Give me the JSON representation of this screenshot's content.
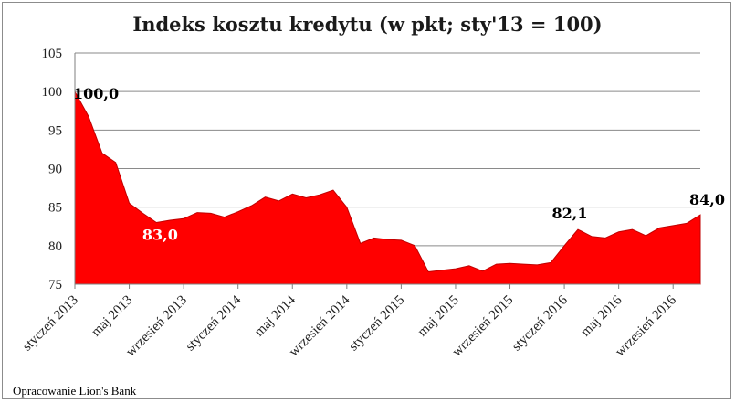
{
  "chart_data": {
    "type": "area",
    "title": "Indeks kosztu kredytu (w pkt; sty'13 = 100)",
    "source": "Opracowanie Lion's Bank",
    "ylim": [
      75,
      105
    ],
    "yticks": [
      75,
      80,
      85,
      90,
      95,
      100,
      105
    ],
    "grid": true,
    "color": "#ff0000",
    "x_tick_labels": [
      "styczeń 2013",
      "maj 2013",
      "wrzesień 2013",
      "styczeń 2014",
      "maj 2014",
      "wrzesień 2014",
      "styczeń 2015",
      "maj 2015",
      "wrzesień 2015",
      "styczeń 2016",
      "maj 2016",
      "wrzesień 2016"
    ],
    "x": [
      "sty 2013",
      "lut 2013",
      "mar 2013",
      "kwi 2013",
      "maj 2013",
      "cze 2013",
      "lip 2013",
      "sie 2013",
      "wrz 2013",
      "paź 2013",
      "lis 2013",
      "gru 2013",
      "sty 2014",
      "lut 2014",
      "mar 2014",
      "kwi 2014",
      "maj 2014",
      "cze 2014",
      "lip 2014",
      "sie 2014",
      "wrz 2014",
      "paź 2014",
      "lis 2014",
      "gru 2014",
      "sty 2015",
      "lut 2015",
      "mar 2015",
      "kwi 2015",
      "maj 2015",
      "cze 2015",
      "lip 2015",
      "sie 2015",
      "wrz 2015",
      "paź 2015",
      "lis 2015",
      "gru 2015",
      "sty 2016",
      "lut 2016",
      "mar 2016",
      "kwi 2016",
      "maj 2016",
      "cze 2016",
      "lip 2016",
      "sie 2016",
      "wrz 2016",
      "paź 2016",
      "lis 2016"
    ],
    "series": [
      {
        "values": [
          100.0,
          96.8,
          92.0,
          90.8,
          85.5,
          84.2,
          83.0,
          83.3,
          83.5,
          84.3,
          84.2,
          83.7,
          84.4,
          85.2,
          86.3,
          85.8,
          86.7,
          86.2,
          86.6,
          87.2,
          85.0,
          80.3,
          81.0,
          80.8,
          80.7,
          80.0,
          76.6,
          76.8,
          77.0,
          77.4,
          76.7,
          77.6,
          77.7,
          77.6,
          77.5,
          77.8,
          80.0,
          82.1,
          81.2,
          81.0,
          81.8,
          82.1,
          81.3,
          82.3,
          82.6,
          82.9,
          84.0
        ]
      }
    ],
    "data_labels": [
      {
        "text": "100,0",
        "x": "sty 2013",
        "value": 100.0,
        "color": "#000000"
      },
      {
        "text": "83,0",
        "x": "lip 2013",
        "value": 83.0,
        "color": "#ffffff"
      },
      {
        "text": "82,1",
        "x": "lut 2016",
        "value": 82.1,
        "color": "#000000"
      },
      {
        "text": "84,0",
        "x": "lis 2016",
        "value": 84.0,
        "color": "#000000"
      }
    ]
  }
}
